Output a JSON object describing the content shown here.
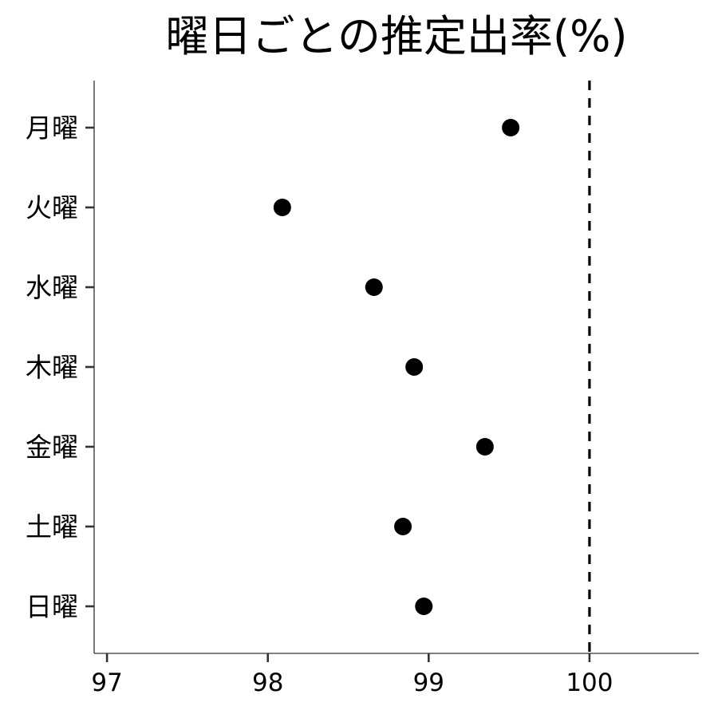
{
  "chart_data": {
    "type": "scatter",
    "title": "曜日ごとの推定出率(%)",
    "xlabel": "",
    "ylabel": "",
    "categories": [
      "月曜",
      "火曜",
      "水曜",
      "木曜",
      "金曜",
      "土曜",
      "日曜"
    ],
    "values": [
      99.51,
      98.09,
      98.66,
      98.91,
      99.35,
      98.84,
      98.97
    ],
    "xlim": [
      96.92,
      100.68
    ],
    "x_ticks": [
      97,
      98,
      99,
      100
    ],
    "x_tick_labels": [
      "97",
      "98",
      "99",
      "100"
    ],
    "reference_line": {
      "x": 100,
      "style": "dashed"
    },
    "grid": false,
    "legend": "none"
  }
}
